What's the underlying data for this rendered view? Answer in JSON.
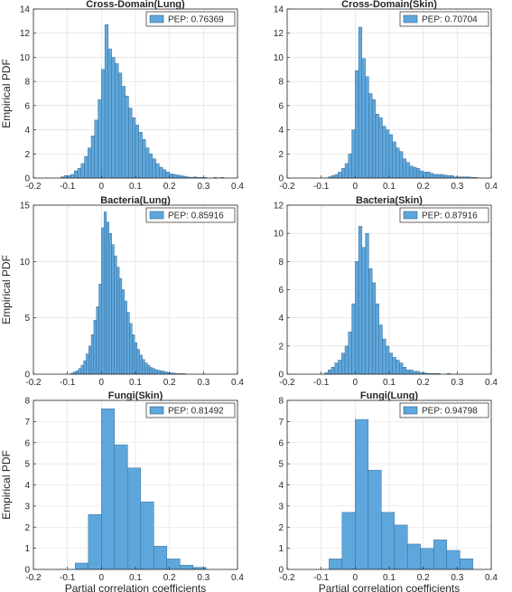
{
  "figure": {
    "bar_color": "#5ea7dc",
    "bar_edge_color": "#2e5f86"
  },
  "chart_data": [
    {
      "type": "bar",
      "panel": "top-left",
      "title": "Cross-Domain(Lung)",
      "xlabel": "",
      "ylabel": "Empirical PDF",
      "legend": "PEP: 0.76369",
      "legend_position": "top-right",
      "xlim": [
        -0.2,
        0.4
      ],
      "ylim": [
        0,
        14
      ],
      "xticks": [
        "-0.2",
        "-0.1",
        "0",
        "0.1",
        "0.2",
        "0.3",
        "0.4"
      ],
      "yticks": [
        "0",
        "2",
        "4",
        "6",
        "8",
        "10",
        "12",
        "14"
      ],
      "grid": true,
      "bin_width": 0.01,
      "bin_starts": [
        -0.12,
        -0.11,
        -0.1,
        -0.09,
        -0.08,
        -0.07,
        -0.06,
        -0.05,
        -0.04,
        -0.03,
        -0.02,
        -0.01,
        0.0,
        0.01,
        0.02,
        0.03,
        0.04,
        0.05,
        0.06,
        0.07,
        0.08,
        0.09,
        0.1,
        0.11,
        0.12,
        0.13,
        0.14,
        0.15,
        0.16,
        0.17,
        0.18,
        0.19,
        0.2,
        0.21,
        0.22,
        0.23,
        0.24,
        0.25,
        0.26,
        0.27,
        0.28,
        0.29,
        0.3,
        0.31,
        0.32,
        0.33,
        0.34,
        0.35
      ],
      "values": [
        0.1,
        0.2,
        0.2,
        0.3,
        0.6,
        0.8,
        1.2,
        1.8,
        2.5,
        3.5,
        4.8,
        6.5,
        9.0,
        12.7,
        10.7,
        10.0,
        9.5,
        8.7,
        7.6,
        6.8,
        5.8,
        5.0,
        4.4,
        3.8,
        3.2,
        2.5,
        2.0,
        1.6,
        1.2,
        0.9,
        0.7,
        0.5,
        0.35,
        0.3,
        0.25,
        0.2,
        0.15,
        0.1,
        0.05,
        0.1,
        0.05,
        0.05,
        0.05,
        0.0,
        0.0,
        0.05,
        0.0,
        0.05
      ]
    },
    {
      "type": "bar",
      "panel": "top-right",
      "title": "Cross-Domain(Skin)",
      "xlabel": "",
      "ylabel": "",
      "legend": "PEP: 0.70704",
      "legend_position": "top-right",
      "xlim": [
        -0.2,
        0.4
      ],
      "ylim": [
        0,
        14
      ],
      "xticks": [
        "-0.2",
        "-0.1",
        "0",
        "0.1",
        "0.2",
        "0.3",
        "0.4"
      ],
      "yticks": [
        "0",
        "2",
        "4",
        "6",
        "8",
        "10",
        "12",
        "14"
      ],
      "grid": true,
      "bin_width": 0.01,
      "bin_starts": [
        -0.08,
        -0.07,
        -0.06,
        -0.05,
        -0.04,
        -0.03,
        -0.02,
        -0.01,
        0.0,
        0.01,
        0.02,
        0.03,
        0.04,
        0.05,
        0.06,
        0.07,
        0.08,
        0.09,
        0.1,
        0.11,
        0.12,
        0.13,
        0.14,
        0.15,
        0.16,
        0.17,
        0.18,
        0.19,
        0.2,
        0.21,
        0.22,
        0.23,
        0.24,
        0.25,
        0.26,
        0.27,
        0.28,
        0.29,
        0.3,
        0.31,
        0.32,
        0.33,
        0.34,
        0.35
      ],
      "values": [
        0.1,
        0.2,
        0.3,
        0.5,
        0.8,
        1.2,
        2.0,
        4.0,
        8.9,
        12.5,
        9.9,
        8.4,
        7.0,
        6.5,
        5.3,
        5.0,
        4.3,
        4.0,
        3.6,
        3.0,
        2.5,
        2.2,
        1.6,
        1.3,
        1.0,
        0.9,
        0.8,
        0.6,
        0.5,
        0.5,
        0.4,
        0.3,
        0.3,
        0.3,
        0.25,
        0.2,
        0.2,
        0.1,
        0.1,
        0.1,
        0.1,
        0.1,
        0.05,
        0.05
      ]
    },
    {
      "type": "bar",
      "panel": "middle-left",
      "title": "Bacteria(Lung)",
      "xlabel": "",
      "ylabel": "Empirical PDF",
      "legend": "PEP: 0.85916",
      "legend_position": "top-right",
      "xlim": [
        -0.2,
        0.4
      ],
      "ylim": [
        0,
        15
      ],
      "xticks": [
        "-0.2",
        "-0.1",
        "0",
        "0.1",
        "0.2",
        "0.3",
        "0.4"
      ],
      "yticks": [
        "0",
        "5",
        "10",
        "15"
      ],
      "grid": true,
      "bin_width": 0.0075,
      "bin_starts": [
        -0.09,
        -0.0825,
        -0.075,
        -0.0675,
        -0.06,
        -0.0525,
        -0.045,
        -0.0375,
        -0.03,
        -0.0225,
        -0.015,
        -0.0075,
        0.0,
        0.0075,
        0.015,
        0.0225,
        0.03,
        0.0375,
        0.045,
        0.0525,
        0.06,
        0.0675,
        0.075,
        0.0825,
        0.09,
        0.0975,
        0.105,
        0.1125,
        0.12,
        0.1275,
        0.135,
        0.1425,
        0.15,
        0.1575,
        0.165,
        0.1725,
        0.18,
        0.1875,
        0.195,
        0.2025,
        0.21,
        0.2175,
        0.225,
        0.2325,
        0.24
      ],
      "values": [
        0.1,
        0.2,
        0.3,
        0.5,
        0.8,
        1.2,
        1.8,
        2.5,
        3.5,
        4.8,
        6.0,
        8.0,
        13.0,
        14.4,
        13.5,
        12.5,
        11.5,
        10.5,
        9.5,
        8.5,
        7.5,
        6.5,
        5.5,
        4.5,
        3.5,
        2.8,
        2.2,
        1.7,
        1.3,
        1.0,
        0.8,
        0.6,
        0.5,
        0.4,
        0.35,
        0.3,
        0.25,
        0.2,
        0.15,
        0.1,
        0.1,
        0.05,
        0.05,
        0.05,
        0.05
      ]
    },
    {
      "type": "bar",
      "panel": "middle-right",
      "title": "Bacteria(Skin)",
      "xlabel": "",
      "ylabel": "",
      "legend": "PEP: 0.87916",
      "legend_position": "top-right",
      "xlim": [
        -0.2,
        0.4
      ],
      "ylim": [
        0,
        12
      ],
      "xticks": [
        "-0.2",
        "-0.1",
        "0",
        "0.1",
        "0.2",
        "0.3",
        "0.4"
      ],
      "yticks": [
        "0",
        "2",
        "4",
        "6",
        "8",
        "10",
        "12"
      ],
      "grid": true,
      "bin_width": 0.01,
      "bin_starts": [
        -0.09,
        -0.08,
        -0.07,
        -0.06,
        -0.05,
        -0.04,
        -0.03,
        -0.02,
        -0.01,
        0.0,
        0.01,
        0.02,
        0.03,
        0.04,
        0.05,
        0.06,
        0.07,
        0.08,
        0.09,
        0.1,
        0.11,
        0.12,
        0.13,
        0.14,
        0.15,
        0.16,
        0.17,
        0.18,
        0.19,
        0.2,
        0.21,
        0.22,
        0.23,
        0.24,
        0.25,
        0.26,
        0.27
      ],
      "values": [
        0.1,
        0.3,
        0.5,
        0.8,
        1.0,
        1.5,
        2.0,
        3.0,
        5.0,
        8.0,
        10.5,
        9.0,
        10.0,
        7.5,
        6.5,
        5.0,
        3.5,
        2.5,
        2.0,
        1.5,
        1.2,
        1.0,
        0.8,
        0.5,
        0.3,
        0.3,
        0.2,
        0.2,
        0.1,
        0.1,
        0.05,
        0.05,
        0.05,
        0.05,
        0.0,
        0.0,
        0.05
      ]
    },
    {
      "type": "bar",
      "panel": "bottom-left",
      "title": "Fungi(Skin)",
      "xlabel": "Partial correlation coefficients",
      "ylabel": "Empirical PDF",
      "legend": "PEP: 0.81492",
      "legend_position": "top-right",
      "xlim": [
        -0.2,
        0.4
      ],
      "ylim": [
        0,
        8
      ],
      "xticks": [
        "-0.2",
        "-0.1",
        "0",
        "0.1",
        "0.2",
        "0.3",
        "0.4"
      ],
      "yticks": [
        "0",
        "1",
        "2",
        "3",
        "4",
        "5",
        "6",
        "7",
        "8"
      ],
      "grid": true,
      "bin_width": 0.0385,
      "bin_starts": [
        -0.077,
        -0.0385,
        0.0,
        0.0385,
        0.077,
        0.1155,
        0.154,
        0.1925,
        0.231,
        0.2695
      ],
      "values": [
        0.3,
        2.6,
        7.6,
        5.9,
        4.8,
        3.2,
        1.1,
        0.5,
        0.2,
        0.1
      ]
    },
    {
      "type": "bar",
      "panel": "bottom-right",
      "title": "Fungi(Lung)",
      "xlabel": "Partial correlation coefficients",
      "ylabel": "",
      "legend": "PEP: 0.94798",
      "legend_position": "top-right",
      "xlim": [
        -0.2,
        0.4
      ],
      "ylim": [
        0,
        8
      ],
      "xticks": [
        "-0.2",
        "-0.1",
        "0",
        "0.1",
        "0.2",
        "0.3",
        "0.4"
      ],
      "yticks": [
        "0",
        "1",
        "2",
        "3",
        "4",
        "5",
        "6",
        "7",
        "8"
      ],
      "grid": true,
      "bin_width": 0.0385,
      "bin_starts": [
        -0.077,
        -0.0385,
        0.0,
        0.0385,
        0.077,
        0.1155,
        0.154,
        0.1925,
        0.231,
        0.2695,
        0.308
      ],
      "values": [
        0.5,
        2.7,
        7.1,
        4.7,
        2.7,
        2.1,
        1.2,
        1.0,
        1.4,
        0.9,
        0.5
      ]
    }
  ]
}
